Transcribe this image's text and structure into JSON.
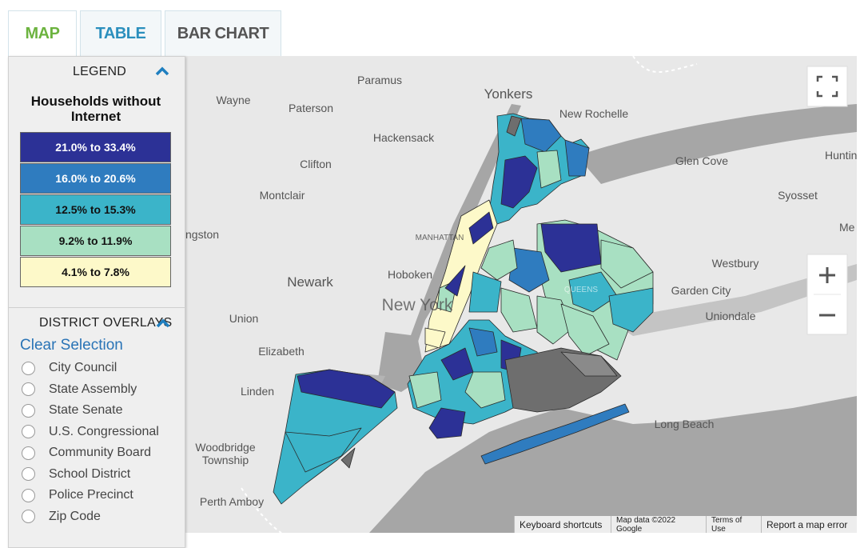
{
  "tabs": [
    "MAP",
    "TABLE",
    "BAR CHART"
  ],
  "legend": {
    "heading": "LEGEND",
    "title": "Households without Internet",
    "bins": [
      {
        "label": "21.0% to 33.4%",
        "color": "#2c3196"
      },
      {
        "label": "16.0% to 20.6%",
        "color": "#2f7cbf"
      },
      {
        "label": "12.5% to 15.3%",
        "color": "#3bb4c9"
      },
      {
        "label": "9.2% to 11.9%",
        "color": "#a8e0c2"
      },
      {
        "label": "4.1% to 7.8%",
        "color": "#fdf9c9"
      }
    ]
  },
  "overlays": {
    "heading": "DISTRICT OVERLAYS",
    "clear": "Clear Selection",
    "options": [
      "City Council",
      "State Assembly",
      "State Senate",
      "U.S. Congressional",
      "Community Board",
      "School District",
      "Police Precinct",
      "Zip Code"
    ]
  },
  "map": {
    "places": [
      "Paramus",
      "Wayne",
      "Paterson",
      "Yonkers",
      "New Rochelle",
      "Hackensack",
      "Clifton",
      "Glen Cove",
      "Huntin",
      "Montclair",
      "Syosset",
      "ngston",
      "Me",
      "Westbury",
      "Newark",
      "Hoboken",
      "Garden City",
      "Union",
      "Uniondale",
      "Elizabeth",
      "Linden",
      "Long Beach",
      "Woodbridge",
      "Township",
      "Perth Amboy",
      "New York",
      "MANHATTAN",
      "QUEENS"
    ],
    "attribution": [
      "Keyboard shortcuts",
      "Map data ©2022 Google",
      "Terms of Use",
      "Report a map error"
    ]
  }
}
